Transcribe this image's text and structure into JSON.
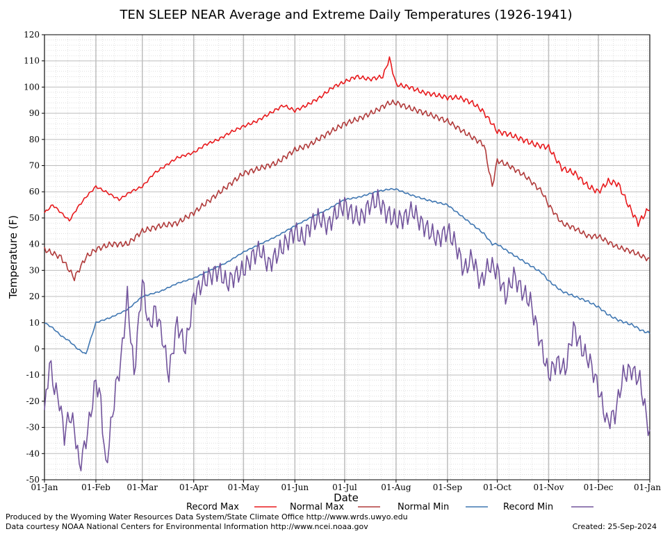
{
  "chart_data": {
    "type": "line",
    "title": "TEN SLEEP NEAR Average and Extreme Daily Temperatures (1926-1941)",
    "xlabel": "Date",
    "ylabel": "Temperature (F)",
    "ylim": [
      -50,
      120
    ],
    "y_ticks": [
      -50,
      -40,
      -30,
      -20,
      -10,
      0,
      10,
      20,
      30,
      40,
      50,
      60,
      70,
      80,
      90,
      100,
      110,
      120
    ],
    "x_tick_labels": [
      "01-Jan",
      "01-Feb",
      "01-Mar",
      "01-Apr",
      "01-May",
      "01-Jun",
      "01-Jul",
      "01-Aug",
      "01-Sep",
      "01-Oct",
      "01-Nov",
      "01-Dec",
      "01-Jan"
    ],
    "x_tick_days": [
      0,
      31,
      59,
      90,
      120,
      151,
      181,
      212,
      243,
      273,
      304,
      334,
      365
    ],
    "grid": true,
    "legend_placement": "bottom",
    "x_unit": "day of year",
    "series": [
      {
        "name": "Record Max",
        "color": "#e8191c",
        "x": [
          0,
          5,
          10,
          15,
          20,
          25,
          31,
          37,
          45,
          52,
          59,
          66,
          73,
          80,
          90,
          97,
          105,
          113,
          120,
          128,
          136,
          144,
          151,
          158,
          166,
          174,
          181,
          188,
          196,
          204,
          208,
          212,
          220,
          228,
          236,
          243,
          250,
          258,
          264,
          270,
          273,
          280,
          288,
          296,
          304,
          312,
          320,
          328,
          334,
          340,
          346,
          352,
          358,
          365
        ],
        "values": [
          52,
          55,
          52,
          49,
          54,
          58,
          62,
          60,
          57,
          60,
          62,
          67,
          70,
          73,
          75,
          78,
          80,
          83,
          85,
          87,
          90,
          93,
          91,
          93,
          96,
          100,
          102,
          104,
          103,
          104,
          111,
          101,
          100,
          98,
          97,
          96,
          96,
          94,
          91,
          86,
          83,
          82,
          80,
          78,
          77,
          69,
          67,
          62,
          60,
          64,
          63,
          55,
          48,
          54
        ]
      },
      {
        "name": "Normal Max",
        "color": "#b03a3a",
        "x": [
          0,
          10,
          18,
          25,
          31,
          40,
          50,
          59,
          70,
          80,
          90,
          100,
          110,
          120,
          130,
          140,
          151,
          160,
          170,
          181,
          190,
          200,
          208,
          212,
          220,
          230,
          243,
          255,
          265,
          270,
          273,
          280,
          290,
          300,
          304,
          312,
          320,
          328,
          334,
          345,
          355,
          365
        ],
        "values": [
          38,
          35,
          27,
          35,
          38,
          40,
          40,
          45,
          47,
          48,
          52,
          57,
          62,
          67,
          69,
          71,
          76,
          78,
          82,
          86,
          88,
          91,
          94,
          94,
          92,
          90,
          87,
          82,
          78,
          62,
          72,
          70,
          66,
          60,
          55,
          48,
          46,
          43,
          43,
          39,
          37,
          34
        ]
      },
      {
        "name": "Normal Min",
        "color": "#3f76b1",
        "x": [
          0,
          5,
          10,
          15,
          20,
          25,
          31,
          40,
          50,
          59,
          70,
          80,
          90,
          100,
          110,
          120,
          130,
          140,
          151,
          160,
          170,
          181,
          190,
          200,
          208,
          212,
          220,
          230,
          243,
          255,
          265,
          270,
          273,
          280,
          290,
          300,
          304,
          312,
          320,
          328,
          334,
          340,
          346,
          355,
          360,
          365
        ],
        "values": [
          10,
          8,
          5,
          3,
          0,
          -2,
          10,
          12,
          15,
          20,
          22,
          25,
          27,
          30,
          33,
          37,
          40,
          43,
          47,
          50,
          53,
          57,
          58,
          60,
          61,
          61,
          59,
          57,
          55,
          49,
          44,
          40,
          40,
          37,
          33,
          29,
          26,
          22,
          20,
          18,
          16,
          13,
          11,
          9,
          7,
          6
        ]
      },
      {
        "name": "Record Min",
        "color": "#72549c",
        "x": [
          0,
          3,
          6,
          9,
          12,
          15,
          18,
          21,
          24,
          27,
          31,
          34,
          37,
          40,
          43,
          46,
          50,
          54,
          59,
          63,
          67,
          71,
          75,
          80,
          85,
          90,
          95,
          100,
          105,
          110,
          115,
          120,
          125,
          130,
          135,
          140,
          145,
          151,
          156,
          161,
          166,
          171,
          176,
          181,
          186,
          191,
          196,
          201,
          206,
          212,
          217,
          222,
          227,
          232,
          237,
          243,
          248,
          253,
          258,
          263,
          268,
          273,
          278,
          283,
          288,
          293,
          298,
          304,
          309,
          314,
          319,
          324,
          329,
          334,
          339,
          344,
          349,
          354,
          359,
          365
        ],
        "values": [
          -25,
          -5,
          -15,
          -20,
          -33,
          -25,
          -30,
          -45,
          -38,
          -28,
          -12,
          -20,
          -46,
          -30,
          -15,
          -5,
          20,
          -10,
          26,
          8,
          15,
          5,
          -10,
          10,
          0,
          20,
          25,
          28,
          30,
          25,
          28,
          30,
          35,
          38,
          32,
          36,
          40,
          45,
          42,
          48,
          50,
          47,
          52,
          55,
          51,
          50,
          55,
          57,
          52,
          49,
          50,
          53,
          48,
          45,
          42,
          45,
          40,
          30,
          35,
          25,
          32,
          30,
          20,
          28,
          22,
          18,
          5,
          -10,
          -5,
          -8,
          8,
          0,
          -5,
          -15,
          -28,
          -25,
          -10,
          -8,
          -12,
          -33
        ]
      }
    ]
  },
  "footer": {
    "left_line1": "Produced by the Wyoming Water Resources Data System/State Climate Office http://www.wrds.uwyo.edu",
    "left_line2": "Data courtesy NOAA National Centers for Environmental Information http://www.ncei.noaa.gov",
    "created": "Created:  25-Sep-2024"
  }
}
